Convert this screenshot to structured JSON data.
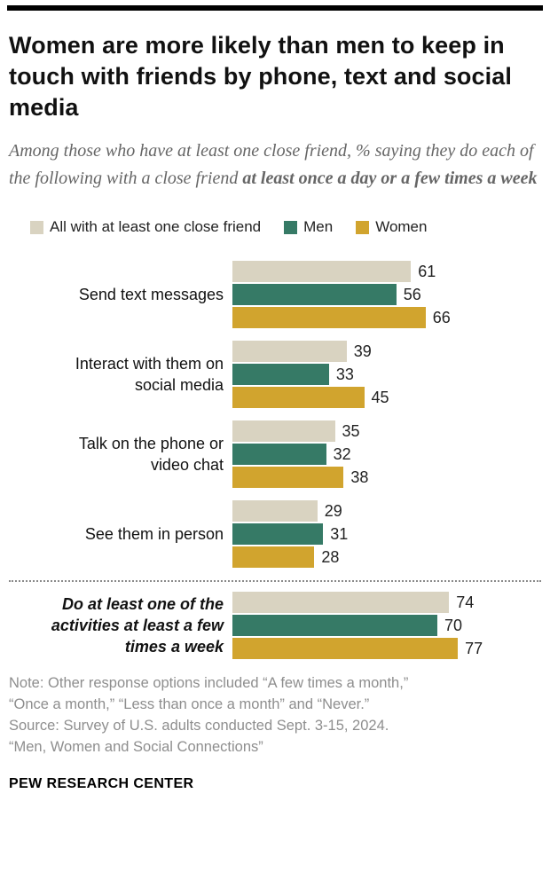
{
  "header": {
    "title": "Women are more likely than men to keep in touch with friends by phone, text and social media",
    "subtitle_plain": "Among those who have at least one close friend, % saying they do each of the following with a close friend ",
    "subtitle_bold": "at least once a day or a few times a week"
  },
  "chart_data": {
    "type": "bar",
    "orientation": "horizontal",
    "xlim": [
      0,
      100
    ],
    "legend_position": "top",
    "separator_after_category_index": 3,
    "categories": [
      {
        "label": "Send text messages",
        "emphasis": false
      },
      {
        "label": "Interact with them on social media",
        "emphasis": false
      },
      {
        "label": "Talk on the phone or video chat",
        "emphasis": false
      },
      {
        "label": "See them in person",
        "emphasis": false
      },
      {
        "label": "Do at least one of the activities at least a few times a week",
        "emphasis": true
      }
    ],
    "series": [
      {
        "key": "all",
        "name": "All with at least one close friend",
        "color": "#d9d3c1",
        "values": [
          61,
          39,
          35,
          29,
          74
        ]
      },
      {
        "key": "men",
        "name": "Men",
        "color": "#367a66",
        "values": [
          56,
          33,
          32,
          31,
          70
        ]
      },
      {
        "key": "women",
        "name": "Women",
        "color": "#d1a42e",
        "values": [
          66,
          45,
          38,
          28,
          77
        ]
      }
    ]
  },
  "notes": {
    "lines": [
      "Note: Other response options included “A few times a month,”",
      "“Once a month,” “Less than once a month” and “Never.”",
      "Source: Survey of U.S. adults conducted Sept. 3-15, 2024.",
      "“Men, Women and Social Connections”"
    ]
  },
  "footer": {
    "brand": "PEW RESEARCH CENTER"
  }
}
